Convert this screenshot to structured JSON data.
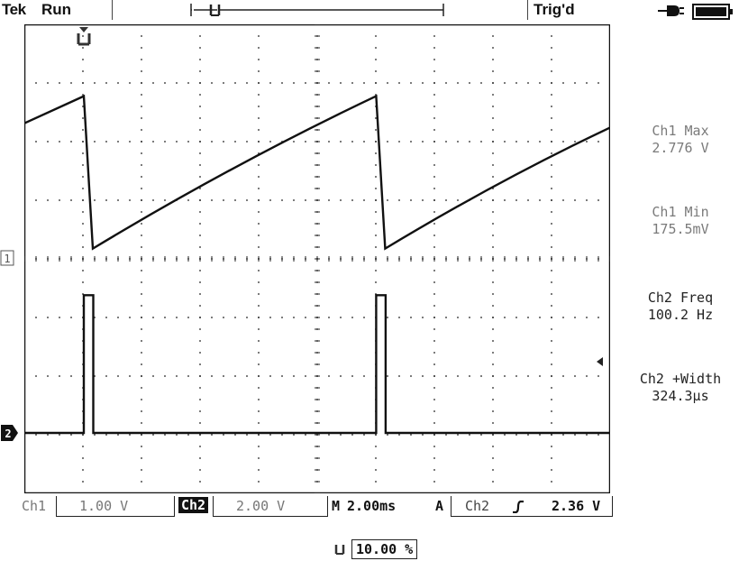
{
  "header": {
    "brand": "Tek",
    "run_state": "Run",
    "trigger_state": "Trig'd",
    "icons": [
      "trigger-position-icon",
      "power-plug-icon",
      "battery-icon"
    ]
  },
  "graticule": {
    "divisions_x": 10,
    "divisions_y": 8,
    "ch1_marker": "1",
    "ch2_marker": "2"
  },
  "measurements": [
    {
      "label": "Ch1 Max",
      "value": "2.776 V",
      "style": "gray"
    },
    {
      "label": "Ch1 Min",
      "value": "175.5mV",
      "style": "gray"
    },
    {
      "label": "Ch2 Freq",
      "value": "100.2 Hz",
      "style": "dark"
    },
    {
      "label": "Ch2 +Width",
      "value": "324.3µs",
      "style": "dark"
    }
  ],
  "settings": {
    "ch1_label": "Ch1",
    "ch1_scale": "1.00 V",
    "ch2_label": "Ch2",
    "ch2_scale": "2.00 V",
    "timebase_prefix": "M",
    "timebase": "2.00ms",
    "acquire_mode": "A",
    "trigger_source": "Ch2",
    "trigger_level": "2.36 V"
  },
  "horizontal_position": "10.00 %",
  "waveforms": {
    "ch1": {
      "type": "sawtooth",
      "max_v": 2.776,
      "min_v": 0.1755,
      "volts_per_div": 1.0
    },
    "ch2": {
      "type": "pulse",
      "freq_hz": 100.2,
      "width_us": 324.3,
      "volts_per_div": 2.0,
      "trigger_level_v": 2.36
    }
  }
}
